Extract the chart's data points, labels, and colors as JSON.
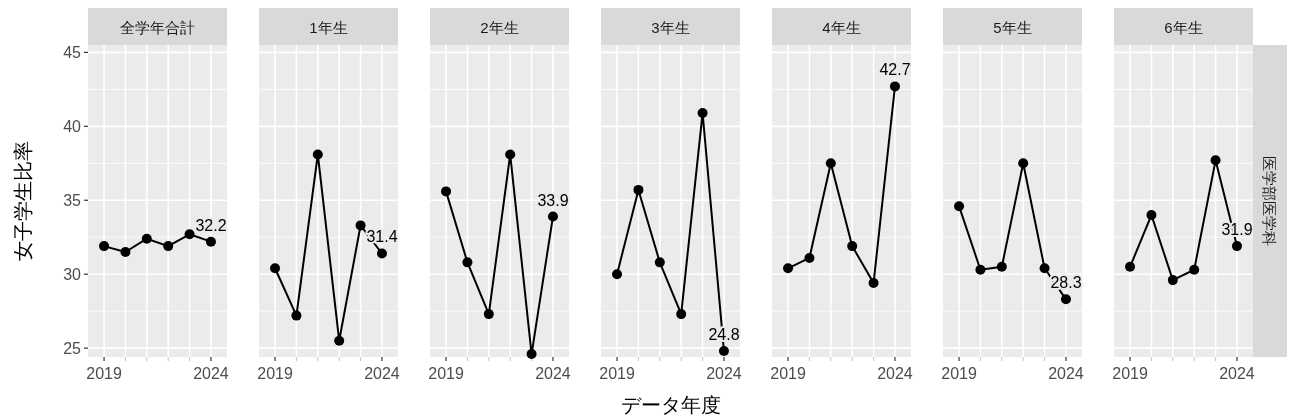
{
  "chart_data": [
    {
      "type": "line",
      "title": "全学年合計",
      "ylabel": "女子学生比率",
      "x": [
        2019,
        2020,
        2021,
        2022,
        2023,
        2024
      ],
      "values": [
        31.9,
        31.5,
        32.4,
        31.9,
        32.7,
        32.2
      ],
      "value_labels": [
        null,
        null,
        null,
        null,
        null,
        "32.2"
      ],
      "color": "#000000",
      "marker": "circle",
      "xlim": [
        2018.25,
        2024.75
      ],
      "xticks": [
        {
          "value": 2019,
          "label": "2019"
        },
        {
          "value": 2020,
          "label": null
        },
        {
          "value": 2021,
          "label": null
        },
        {
          "value": 2022,
          "label": null
        },
        {
          "value": 2023,
          "label": null
        },
        {
          "value": 2024,
          "label": "2024"
        }
      ],
      "ylim": [
        24.4,
        45.5
      ],
      "yticks": [
        25,
        30,
        35,
        40,
        45
      ],
      "grid": true
    },
    {
      "type": "line",
      "title": "1年生",
      "x": [
        2019,
        2020,
        2021,
        2022,
        2023,
        2024
      ],
      "values": [
        30.4,
        27.2,
        38.1,
        25.5,
        33.3,
        31.4
      ],
      "value_labels": [
        null,
        null,
        null,
        null,
        null,
        "31.4"
      ],
      "color": "#000000",
      "marker": "circle",
      "xlim": [
        2018.25,
        2024.75
      ],
      "xticks": [
        {
          "value": 2019,
          "label": "2019"
        },
        {
          "value": 2020,
          "label": null
        },
        {
          "value": 2021,
          "label": null
        },
        {
          "value": 2022,
          "label": null
        },
        {
          "value": 2023,
          "label": null
        },
        {
          "value": 2024,
          "label": "2024"
        }
      ],
      "ylim": [
        24.4,
        45.5
      ],
      "yticks": [
        25,
        30,
        35,
        40,
        45
      ],
      "grid": true,
      "tick_labels": "x"
    },
    {
      "type": "line",
      "title": "2年生",
      "x": [
        2019,
        2020,
        2021,
        2022,
        2023,
        2024
      ],
      "values": [
        35.6,
        30.8,
        27.3,
        38.1,
        24.6,
        33.9
      ],
      "value_labels": [
        null,
        null,
        null,
        null,
        null,
        "33.9"
      ],
      "color": "#000000",
      "marker": "circle",
      "xlim": [
        2018.25,
        2024.75
      ],
      "xticks": [
        {
          "value": 2019,
          "label": "2019"
        },
        {
          "value": 2020,
          "label": null
        },
        {
          "value": 2021,
          "label": null
        },
        {
          "value": 2022,
          "label": null
        },
        {
          "value": 2023,
          "label": null
        },
        {
          "value": 2024,
          "label": "2024"
        }
      ],
      "ylim": [
        24.4,
        45.5
      ],
      "yticks": [
        25,
        30,
        35,
        40,
        45
      ],
      "grid": true,
      "tick_labels": "x"
    },
    {
      "type": "line",
      "title": "3年生",
      "xlabel": "データ年度",
      "x": [
        2019,
        2020,
        2021,
        2022,
        2023,
        2024
      ],
      "values": [
        30.0,
        35.7,
        30.8,
        27.3,
        40.9,
        24.8
      ],
      "value_labels": [
        null,
        null,
        null,
        null,
        null,
        "24.8"
      ],
      "color": "#000000",
      "marker": "circle",
      "xlim": [
        2018.25,
        2024.75
      ],
      "xticks": [
        {
          "value": 2019,
          "label": "2019"
        },
        {
          "value": 2020,
          "label": null
        },
        {
          "value": 2021,
          "label": null
        },
        {
          "value": 2022,
          "label": null
        },
        {
          "value": 2023,
          "label": null
        },
        {
          "value": 2024,
          "label": "2024"
        }
      ],
      "ylim": [
        24.4,
        45.5
      ],
      "yticks": [
        25,
        30,
        35,
        40,
        45
      ],
      "grid": true,
      "tick_labels": "x"
    },
    {
      "type": "line",
      "title": "4年生",
      "x": [
        2019,
        2020,
        2021,
        2022,
        2023,
        2024
      ],
      "values": [
        30.4,
        31.1,
        37.5,
        31.9,
        29.4,
        42.7
      ],
      "value_labels": [
        null,
        null,
        null,
        null,
        null,
        "42.7"
      ],
      "color": "#000000",
      "marker": "circle",
      "xlim": [
        2018.25,
        2024.75
      ],
      "xticks": [
        {
          "value": 2019,
          "label": "2019"
        },
        {
          "value": 2020,
          "label": null
        },
        {
          "value": 2021,
          "label": null
        },
        {
          "value": 2022,
          "label": null
        },
        {
          "value": 2023,
          "label": null
        },
        {
          "value": 2024,
          "label": "2024"
        }
      ],
      "ylim": [
        24.4,
        45.5
      ],
      "yticks": [
        25,
        30,
        35,
        40,
        45
      ],
      "grid": true,
      "tick_labels": "x"
    },
    {
      "type": "line",
      "title": "5年生",
      "x": [
        2019,
        2020,
        2021,
        2022,
        2023,
        2024
      ],
      "values": [
        34.6,
        30.3,
        30.5,
        37.5,
        30.4,
        28.3
      ],
      "value_labels": [
        null,
        null,
        null,
        null,
        null,
        "28.3"
      ],
      "color": "#000000",
      "marker": "circle",
      "xlim": [
        2018.25,
        2024.75
      ],
      "xticks": [
        {
          "value": 2019,
          "label": "2019"
        },
        {
          "value": 2020,
          "label": null
        },
        {
          "value": 2021,
          "label": null
        },
        {
          "value": 2022,
          "label": null
        },
        {
          "value": 2023,
          "label": null
        },
        {
          "value": 2024,
          "label": "2024"
        }
      ],
      "ylim": [
        24.4,
        45.5
      ],
      "yticks": [
        25,
        30,
        35,
        40,
        45
      ],
      "grid": true,
      "tick_labels": "x"
    },
    {
      "type": "line",
      "title": "6年生",
      "annotations": [
        "医学部医学科"
      ],
      "x": [
        2019,
        2020,
        2021,
        2022,
        2023,
        2024
      ],
      "values": [
        30.5,
        34.0,
        29.6,
        30.3,
        37.7,
        31.9
      ],
      "value_labels": [
        null,
        null,
        null,
        null,
        null,
        "31.9"
      ],
      "color": "#000000",
      "marker": "circle",
      "xlim": [
        2018.25,
        2024.75
      ],
      "xticks": [
        {
          "value": 2019,
          "label": "2019"
        },
        {
          "value": 2020,
          "label": null
        },
        {
          "value": 2021,
          "label": null
        },
        {
          "value": 2022,
          "label": null
        },
        {
          "value": 2023,
          "label": null
        },
        {
          "value": 2024,
          "label": "2024"
        }
      ],
      "ylim": [
        24.4,
        45.5
      ],
      "yticks": [
        25,
        30,
        35,
        40,
        45
      ],
      "grid": true,
      "tick_labels": "x"
    }
  ]
}
